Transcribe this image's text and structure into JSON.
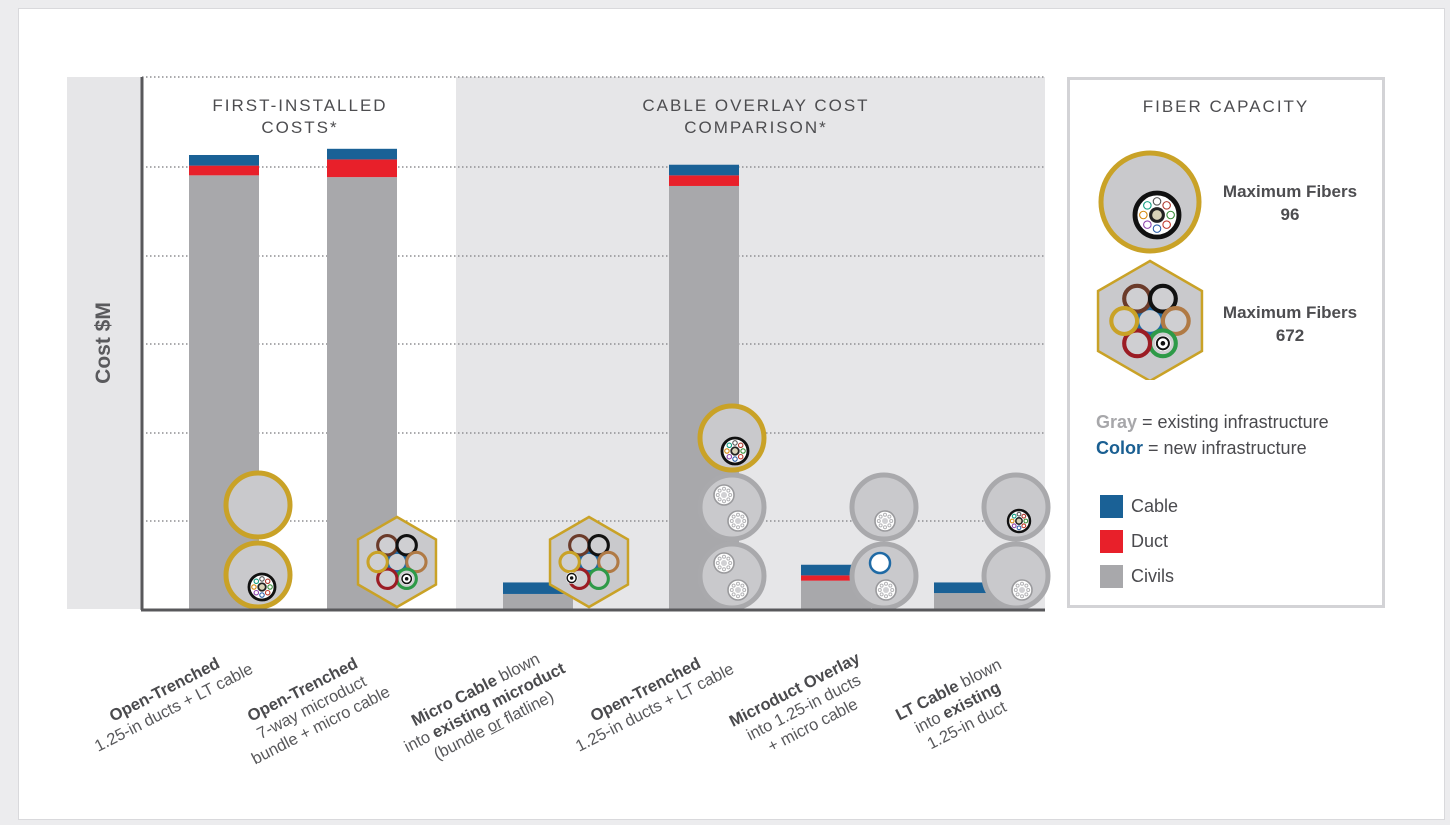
{
  "chart_data": {
    "type": "bar",
    "stacked": true,
    "ylabel": "Cost $M",
    "y_tick_labels": "none",
    "grid": "dotted horizontal",
    "sections": [
      {
        "title_lines": [
          "FIRST-INSTALLED",
          "COSTS*"
        ],
        "category_range": [
          0,
          1
        ],
        "background": "#ffffff"
      },
      {
        "title_lines": [
          "CABLE OVERLAY COST",
          "COMPARISON*"
        ],
        "category_range": [
          2,
          5
        ],
        "background": "#e6e6e8"
      }
    ],
    "categories": [
      {
        "bold": "Open-Trenched",
        "lines": [
          "1.25-in ducts + LT cable"
        ],
        "cross_section": [
          "duct-empty",
          "duct-lt-cable"
        ]
      },
      {
        "bold": "Open-Trenched",
        "lines": [
          "7-way microduct",
          "bundle + micro cable"
        ],
        "cross_section": [
          "microduct-bundle-new"
        ]
      },
      {
        "bold": "Micro Cable",
        "after_bold": " blown",
        "lines2": [
          "into ",
          "existing microduct"
        ],
        "lines3": [
          "(bundle ",
          "or",
          " flatline)"
        ],
        "cross_section": [
          "microduct-bundle-existing"
        ]
      },
      {
        "bold": "Open-Trenched",
        "lines": [
          "1.25-in ducts + LT cable"
        ],
        "cross_section": [
          "duct-lt-cable",
          "duct-existing",
          "duct-existing"
        ]
      },
      {
        "bold": "Microduct Overlay",
        "lines": [
          "into 1.25-in ducts",
          "+ micro cable"
        ],
        "cross_section": [
          "duct-existing",
          "duct-blue-ring"
        ]
      },
      {
        "bold": "LT Cable",
        "after_bold": " blown",
        "lines2": [
          "into ",
          "existing"
        ],
        "lines3": [
          "1.25-in duct"
        ],
        "cross_section": [
          "duct-lt-cable-existing",
          "duct-existing"
        ]
      }
    ],
    "series": [
      {
        "name": "Civils",
        "color": "#a8a8ab",
        "values": [
          49,
          48.8,
          1.7,
          47.8,
          3.2,
          1.8
        ]
      },
      {
        "name": "Duct",
        "color": "#e8202a",
        "values": [
          1.1,
          2,
          0,
          1.2,
          0.6,
          0
        ]
      },
      {
        "name": "Cable",
        "color": "#1a6196",
        "values": [
          1.2,
          1.2,
          1.3,
          1.2,
          1.2,
          1.2
        ]
      }
    ],
    "ylim": [
      0,
      60
    ]
  },
  "legend": {
    "title": "FIBER CAPACITY",
    "capacity_items": [
      {
        "label_line1": "Maximum Fibers",
        "label_line2": "96",
        "icon": "single-duct-cable-icon"
      },
      {
        "label_line1": "Maximum Fibers",
        "label_line2": "672",
        "icon": "microduct-bundle-icon"
      }
    ],
    "note_gray_word": "Gray",
    "note_gray_rest": " = existing infrastructure",
    "note_color_word": "Color",
    "note_color_rest": " = new infrastructure",
    "series_items": [
      {
        "label": "Cable",
        "color": "#1a6196"
      },
      {
        "label": "Duct",
        "color": "#e8202a"
      },
      {
        "label": "Civils",
        "color": "#a8a8ab"
      }
    ]
  },
  "colors": {
    "gold": "#c9a227",
    "gray_ring": "#a9a9ac",
    "gray_fill": "#c9c9cc",
    "axis": "#58585b"
  }
}
